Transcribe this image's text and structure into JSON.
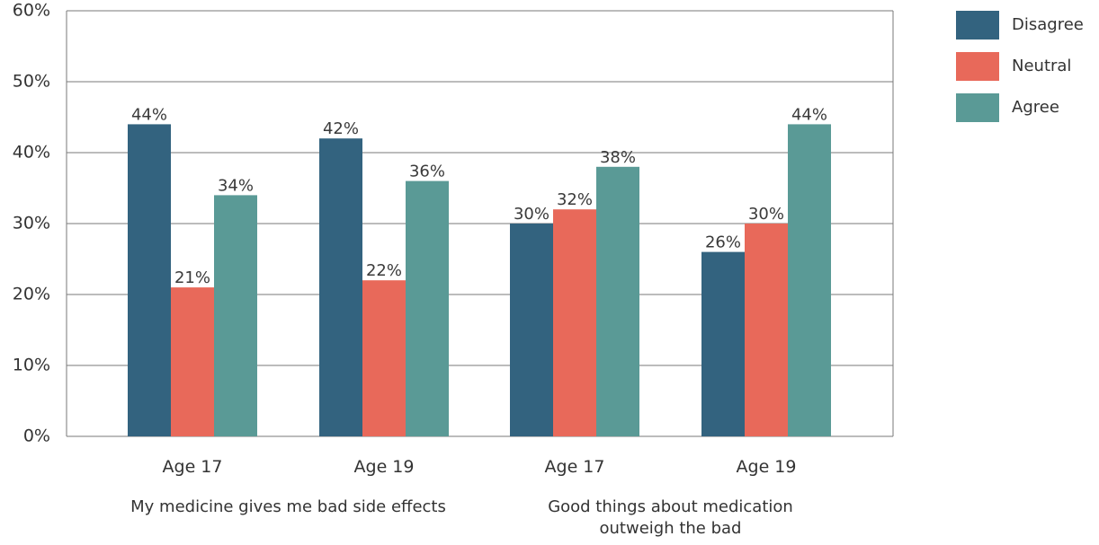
{
  "colors": {
    "disagree": "#33637f",
    "neutral": "#e8695a",
    "agree": "#5a9a96",
    "grid": "#7a7a7a",
    "text": "#333333"
  },
  "chart_data": {
    "type": "bar",
    "categories": [
      "Age 17",
      "Age 19",
      "Age 17",
      "Age 19"
    ],
    "groups": [
      {
        "label_lines": [
          "My medicine gives me bad side effects"
        ],
        "categories": [
          0,
          1
        ]
      },
      {
        "label_lines": [
          "Good things about medication",
          "outweigh the bad"
        ],
        "categories": [
          2,
          3
        ]
      }
    ],
    "series": [
      {
        "name": "Disagree",
        "color": "#33637f",
        "values": [
          44,
          42,
          30,
          26
        ]
      },
      {
        "name": "Neutral",
        "color": "#e8695a",
        "values": [
          21,
          22,
          32,
          30
        ]
      },
      {
        "name": "Agree",
        "color": "#5a9a96",
        "values": [
          34,
          36,
          38,
          44
        ]
      }
    ],
    "y_ticks": [
      "0%",
      "10%",
      "20%",
      "30%",
      "40%",
      "50%",
      "60%"
    ],
    "ylim": [
      0,
      60
    ],
    "value_suffix": "%",
    "grid": true,
    "legend": "top-right"
  }
}
